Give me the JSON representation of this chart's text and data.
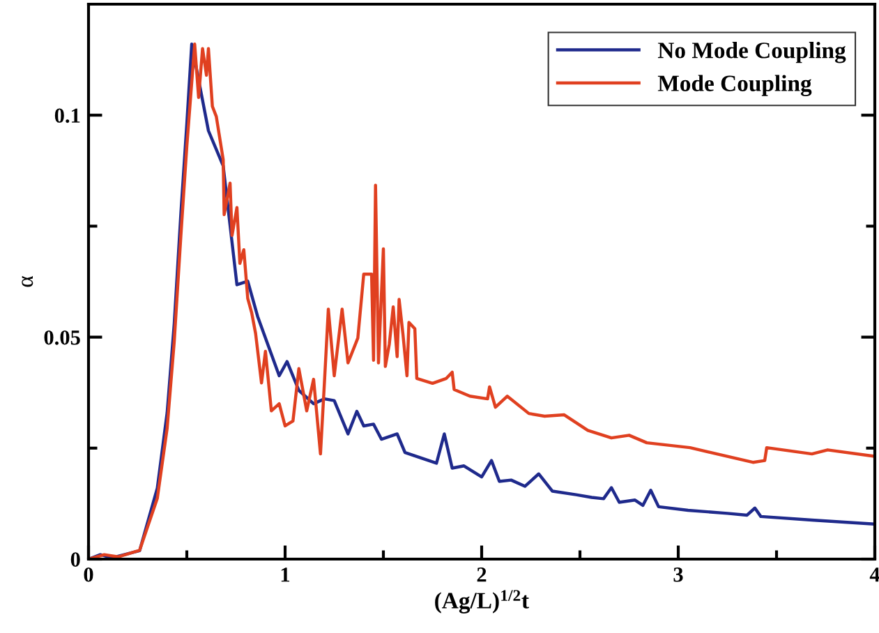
{
  "chart_data": {
    "type": "line",
    "xlabel": "(Ag/L)$^{1/2}$t",
    "ylabel": "α",
    "xlim": [
      0,
      4
    ],
    "xticks": [
      0,
      {
        "value": 0.5,
        "label": null
      },
      1,
      {
        "value": 1.5,
        "label": null
      },
      2,
      {
        "value": 2.5,
        "label": null
      },
      3,
      {
        "value": 3.5,
        "label": null
      },
      4
    ],
    "ylim": [
      0,
      0.125
    ],
    "yticks": [
      0,
      {
        "value": 0.025,
        "label": null
      },
      0.05,
      {
        "value": 0.075,
        "label": null
      },
      0.1
    ],
    "legend": "top right",
    "grid": false,
    "marker": "none",
    "line_style": "solid",
    "series": [
      {
        "name": "No Mode Coupling",
        "color": "#1f2a8c",
        "x": [
          0,
          0.06,
          0.12,
          0.26,
          0.35,
          0.4,
          0.436,
          0.47,
          0.5,
          0.525,
          0.61,
          0.685,
          0.755,
          0.81,
          0.86,
          0.97,
          1.01,
          1.07,
          1.145,
          1.2,
          1.25,
          1.32,
          1.365,
          1.4,
          1.45,
          1.49,
          1.57,
          1.61,
          1.77,
          1.81,
          1.85,
          1.91,
          2.0,
          2.05,
          2.09,
          2.15,
          2.22,
          2.29,
          2.36,
          2.48,
          2.56,
          2.62,
          2.66,
          2.7,
          2.78,
          2.82,
          2.86,
          2.9,
          3.05,
          3.25,
          3.35,
          3.39,
          3.42,
          3.68,
          3.99
        ],
        "values": [
          0,
          0.001,
          0.0003,
          0.0019,
          0.016,
          0.033,
          0.053,
          0.078,
          0.098,
          0.116,
          0.0965,
          0.0886,
          0.0618,
          0.0626,
          0.0547,
          0.0413,
          0.0445,
          0.038,
          0.035,
          0.0361,
          0.0357,
          0.0282,
          0.0333,
          0.03,
          0.0304,
          0.027,
          0.0282,
          0.024,
          0.0216,
          0.0282,
          0.0205,
          0.021,
          0.0185,
          0.0222,
          0.0175,
          0.0178,
          0.0164,
          0.0192,
          0.0153,
          0.0145,
          0.0139,
          0.0136,
          0.0161,
          0.0128,
          0.0133,
          0.0121,
          0.0155,
          0.0118,
          0.011,
          0.0103,
          0.0099,
          0.0115,
          0.0096,
          0.0088,
          0.0079
        ]
      },
      {
        "name": "Mode Coupling",
        "color": "#e04020",
        "x": [
          0,
          0.08,
          0.15,
          0.26,
          0.35,
          0.4,
          0.436,
          0.47,
          0.5,
          0.54,
          0.56,
          0.58,
          0.6,
          0.61,
          0.63,
          0.65,
          0.685,
          0.69,
          0.72,
          0.73,
          0.755,
          0.77,
          0.79,
          0.81,
          0.83,
          0.85,
          0.88,
          0.9,
          0.93,
          0.97,
          1.0,
          1.04,
          1.07,
          1.11,
          1.145,
          1.18,
          1.2,
          1.22,
          1.25,
          1.29,
          1.32,
          1.37,
          1.4,
          1.44,
          1.45,
          1.46,
          1.475,
          1.5,
          1.51,
          1.53,
          1.55,
          1.57,
          1.58,
          1.6,
          1.62,
          1.63,
          1.66,
          1.67,
          1.75,
          1.82,
          1.85,
          1.86,
          1.94,
          2.03,
          2.04,
          2.07,
          2.13,
          2.24,
          2.32,
          2.42,
          2.54,
          2.66,
          2.75,
          2.84,
          3.06,
          3.38,
          3.44,
          3.45,
          3.68,
          3.76,
          3.99
        ],
        "values": [
          0,
          0.001,
          0.0005,
          0.002,
          0.0137,
          0.0295,
          0.049,
          0.073,
          0.093,
          0.116,
          0.104,
          0.115,
          0.109,
          0.115,
          0.102,
          0.0997,
          0.09,
          0.0776,
          0.0847,
          0.0729,
          0.0792,
          0.0666,
          0.0697,
          0.0587,
          0.0555,
          0.0508,
          0.0397,
          0.0468,
          0.0334,
          0.035,
          0.03,
          0.0311,
          0.0429,
          0.0334,
          0.0405,
          0.0237,
          0.0397,
          0.0563,
          0.0413,
          0.0563,
          0.0442,
          0.0498,
          0.0642,
          0.0642,
          0.0448,
          0.0842,
          0.0442,
          0.0699,
          0.0434,
          0.0484,
          0.0568,
          0.0456,
          0.0585,
          0.0505,
          0.0413,
          0.0533,
          0.0519,
          0.0407,
          0.0396,
          0.0407,
          0.0421,
          0.0382,
          0.0367,
          0.0361,
          0.0388,
          0.0342,
          0.0367,
          0.0328,
          0.0322,
          0.0325,
          0.029,
          0.0273,
          0.0279,
          0.0262,
          0.0251,
          0.0218,
          0.0222,
          0.0251,
          0.0237,
          0.0246,
          0.0232
        ]
      }
    ]
  }
}
